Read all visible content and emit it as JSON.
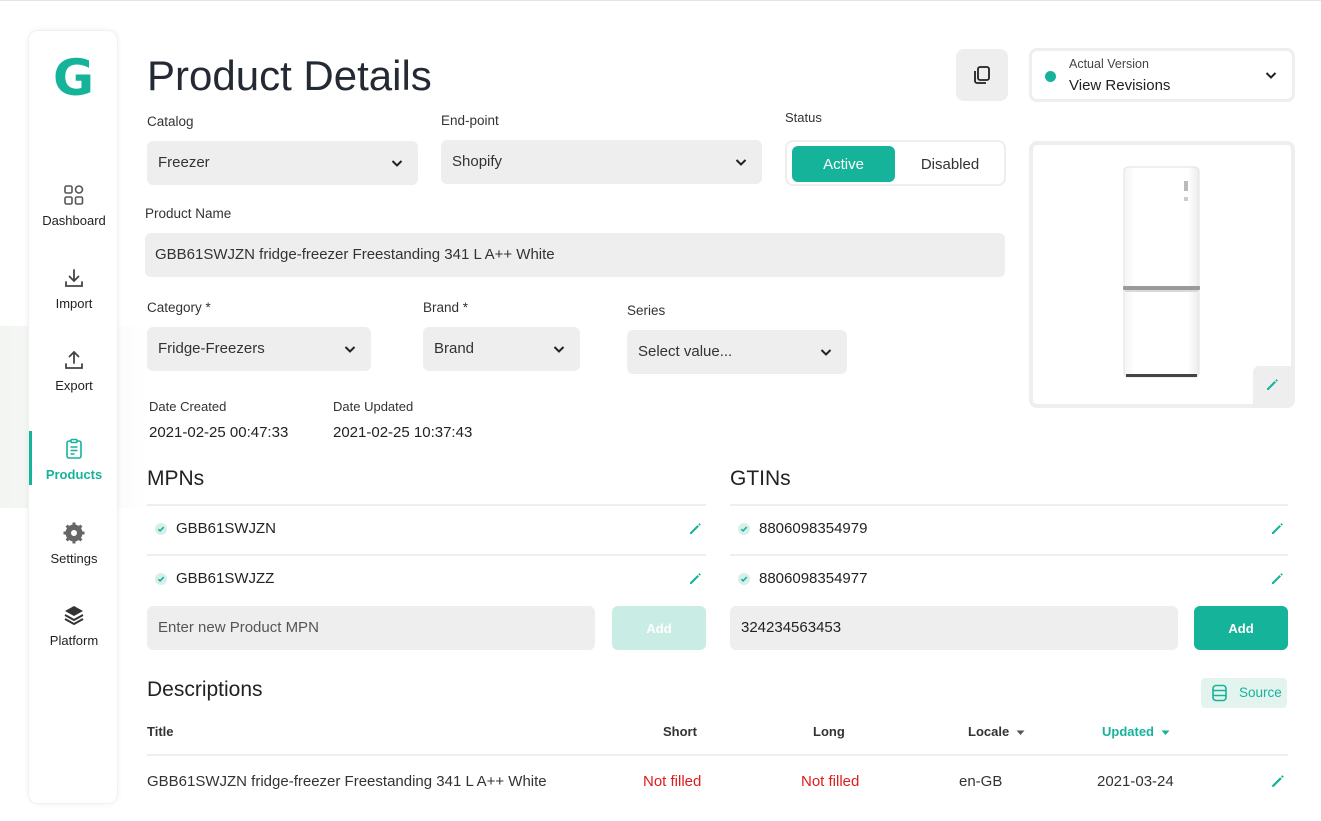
{
  "colors": {
    "accent": "#16b39b",
    "accent_light": "#bfe9e1",
    "warning_text": "#e01b1b",
    "field_bg": "#eeeeee"
  },
  "sidebar": {
    "logo": "G",
    "items": [
      {
        "label": "Dashboard",
        "icon": "grid-icon"
      },
      {
        "label": "Import",
        "icon": "download-icon"
      },
      {
        "label": "Export",
        "icon": "upload-icon"
      },
      {
        "label": "Products",
        "icon": "clipboard-icon",
        "active": true
      },
      {
        "label": "Settings",
        "icon": "gear-icon"
      },
      {
        "label": "Platform",
        "icon": "layers-icon"
      }
    ]
  },
  "header": {
    "title": "Product Details",
    "version": {
      "small_label": "Actual Version",
      "main_label": "View Revisions"
    }
  },
  "form": {
    "catalog": {
      "label": "Catalog",
      "value": "Freezer"
    },
    "endpoint": {
      "label": "End-point",
      "value": "Shopify"
    },
    "status": {
      "label": "Status",
      "options": [
        "Active",
        "Disabled"
      ],
      "selected": "Active"
    },
    "product_name": {
      "label": "Product Name",
      "value": "GBB61SWJZN fridge-freezer Freestanding 341 L A++ White"
    },
    "category": {
      "label": "Category *",
      "value": "Fridge-Freezers"
    },
    "brand": {
      "label": "Brand *",
      "value": "Brand"
    },
    "series": {
      "label": "Series",
      "placeholder": "Select value..."
    },
    "date_created": {
      "label": "Date Created",
      "value": "2021-02-25 00:47:33"
    },
    "date_updated": {
      "label": "Date Updated",
      "value": "2021-02-25 10:37:43"
    }
  },
  "mpns": {
    "title": "MPNs",
    "items": [
      "GBB61SWJZN",
      "GBB61SWJZZ"
    ],
    "input_placeholder": "Enter new Product MPN",
    "add_label": "Add"
  },
  "gtins": {
    "title": "GTINs",
    "items": [
      "8806098354979",
      "8806098354977"
    ],
    "input_value": "324234563453",
    "add_label": "Add"
  },
  "descriptions": {
    "title": "Descriptions",
    "source_label": "Source",
    "columns": {
      "title": "Title",
      "short": "Short",
      "long": "Long",
      "locale": "Locale",
      "updated": "Updated"
    },
    "rows": [
      {
        "title": "GBB61SWJZN fridge-freezer Freestanding 341 L A++ White",
        "short": "Not filled",
        "long": "Not filled",
        "locale": "en-GB",
        "updated": "2021-03-24"
      }
    ]
  }
}
